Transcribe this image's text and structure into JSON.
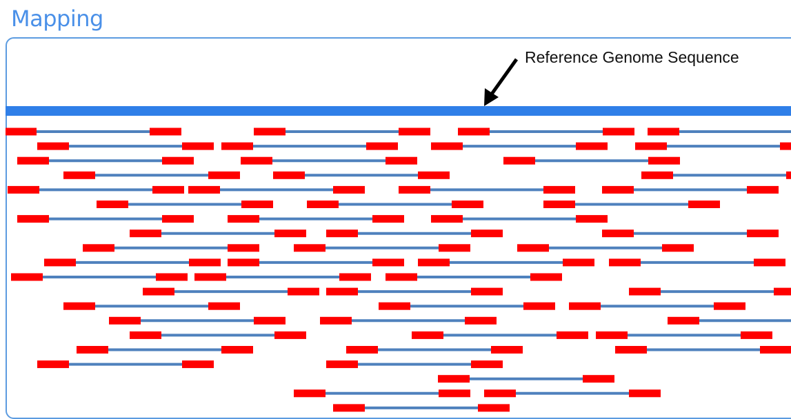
{
  "title": "Mapping",
  "reference_label": "Reference Genome Sequence",
  "colors": {
    "title": "#4a90e8",
    "frame": "#5b9be0",
    "reference": "#2f7fe8",
    "read_end": "#ff0000",
    "read_gap": "#4f81bd",
    "arrow": "#000000"
  }
}
